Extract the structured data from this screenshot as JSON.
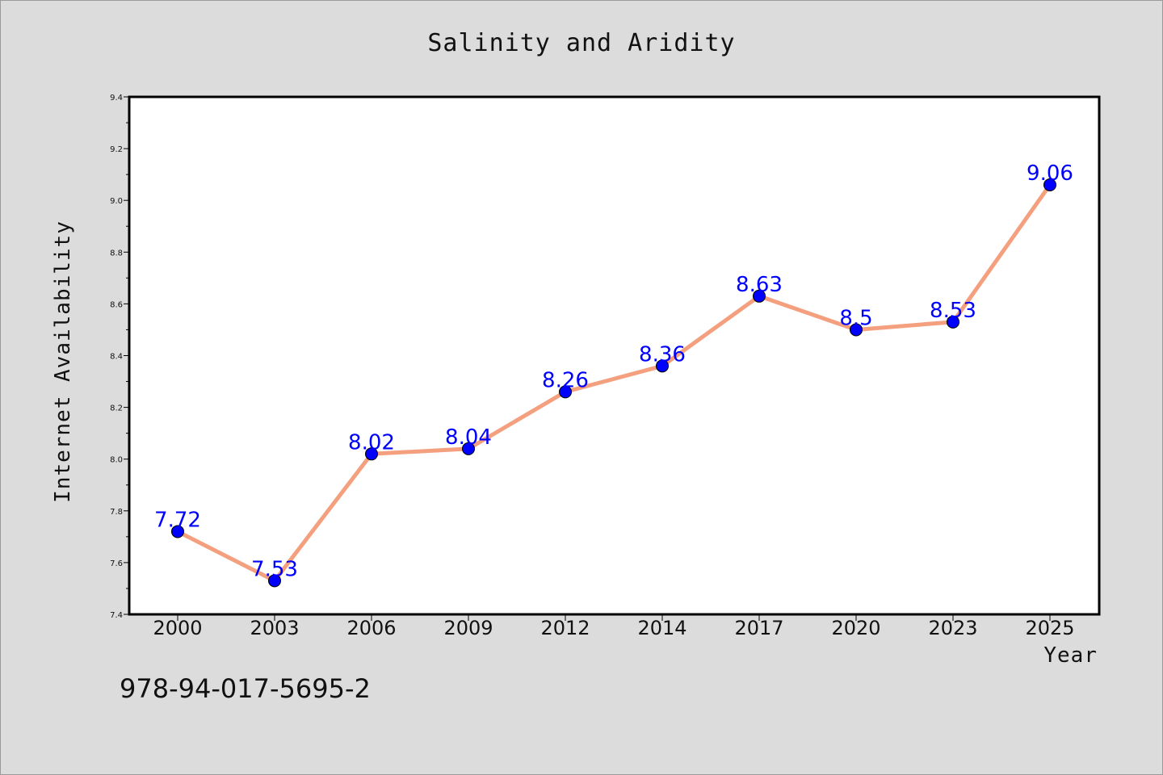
{
  "chart_data": {
    "type": "line",
    "title": "Salinity and Aridity",
    "xlabel": "Year",
    "ylabel": "Internet Availability",
    "categories": [
      "2000",
      "2003",
      "2006",
      "2009",
      "2012",
      "2014",
      "2017",
      "2020",
      "2023",
      "2025"
    ],
    "series": [
      {
        "values": [
          7.72,
          7.53,
          8.02,
          8.04,
          8.26,
          8.36,
          8.63,
          8.5,
          8.53,
          9.06
        ],
        "labels": [
          "7.72",
          "7.53",
          "8.02",
          "8.04",
          "8.26",
          "8.36",
          "8.63",
          "8.5",
          "8.53",
          "9.06"
        ],
        "line_color": "#f4a07f",
        "marker_color": "#0000ff"
      }
    ],
    "ylim": [
      7.4,
      9.4
    ],
    "yticks": [
      "7.4",
      "7.6",
      "7.8",
      "8.0",
      "8.2",
      "8.4",
      "8.6",
      "8.8",
      "9.0",
      "9.2",
      "9.4"
    ],
    "grid": false,
    "legend": "none"
  },
  "annotation": "978-94-017-5695-2",
  "colors": {
    "background": "#dcdcdc",
    "plot_background": "#ffffff",
    "line": "#f4a07f",
    "marker": "#0000ff",
    "data_label": "#0000ff"
  }
}
